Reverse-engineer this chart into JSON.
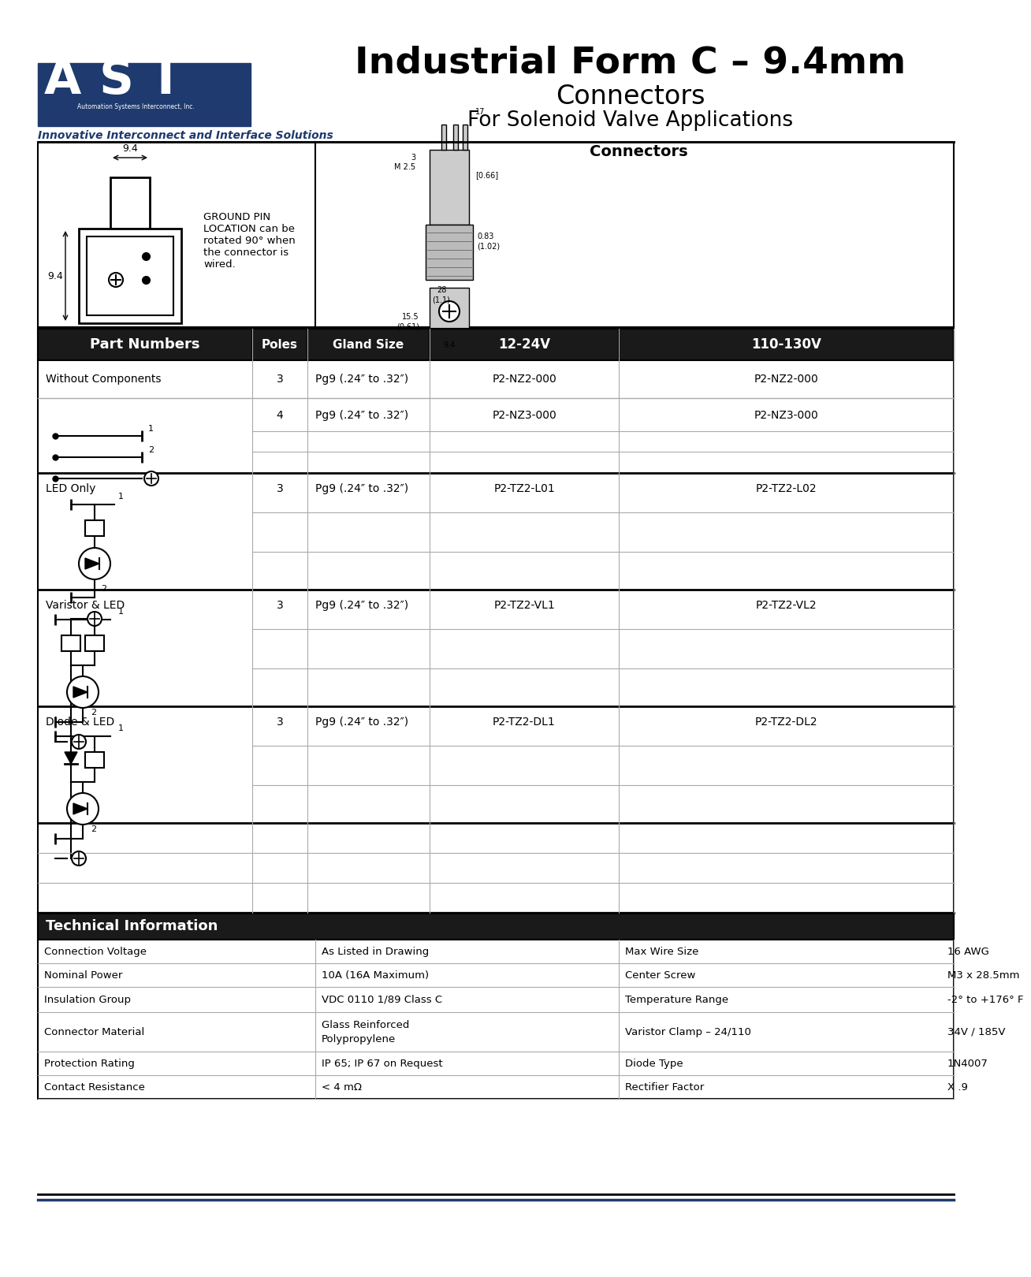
{
  "title_main": "Industrial Form C – 9.4mm",
  "title_sub1": "Connectors",
  "title_sub2": "For Solenoid Valve Applications",
  "company_tagline": "Innovative Interconnect and Interface Solutions",
  "section_connectors": "Connectors",
  "table_header": [
    "Part Numbers",
    "Poles",
    "Gland Size",
    "12-24V",
    "110-130V"
  ],
  "tech_header": "Technical Information",
  "tech_data": [
    [
      "Connection Voltage",
      "As Listed in Drawing",
      "Max Wire Size",
      "16 AWG"
    ],
    [
      "Nominal Power",
      "10A (16A Maximum)",
      "Center Screw",
      "M3 x 28.5mm"
    ],
    [
      "Insulation Group",
      "VDC 0110 1/89 Class C",
      "Temperature Range",
      "-2° to +176° F"
    ],
    [
      "Connector Material",
      "Glass Reinforced\nPolypropylene",
      "Varistor Clamp – 24/110",
      "34V / 185V"
    ],
    [
      "Protection Rating",
      "IP 65; IP 67 on Request",
      "Diode Type",
      "1N4007"
    ],
    [
      "Contact Resistance",
      "< 4 mΩ",
      "Rectifier Factor",
      "X .9"
    ]
  ],
  "ground_pin_text": "GROUND PIN\nLOCATION can be\nrotated 90° when\nthe connector is\nwired.",
  "header_bg": "#1a1a1a",
  "grid_color": "#aaaaaa",
  "bg_color": "#ffffff",
  "blue_color": "#1e3a6e"
}
